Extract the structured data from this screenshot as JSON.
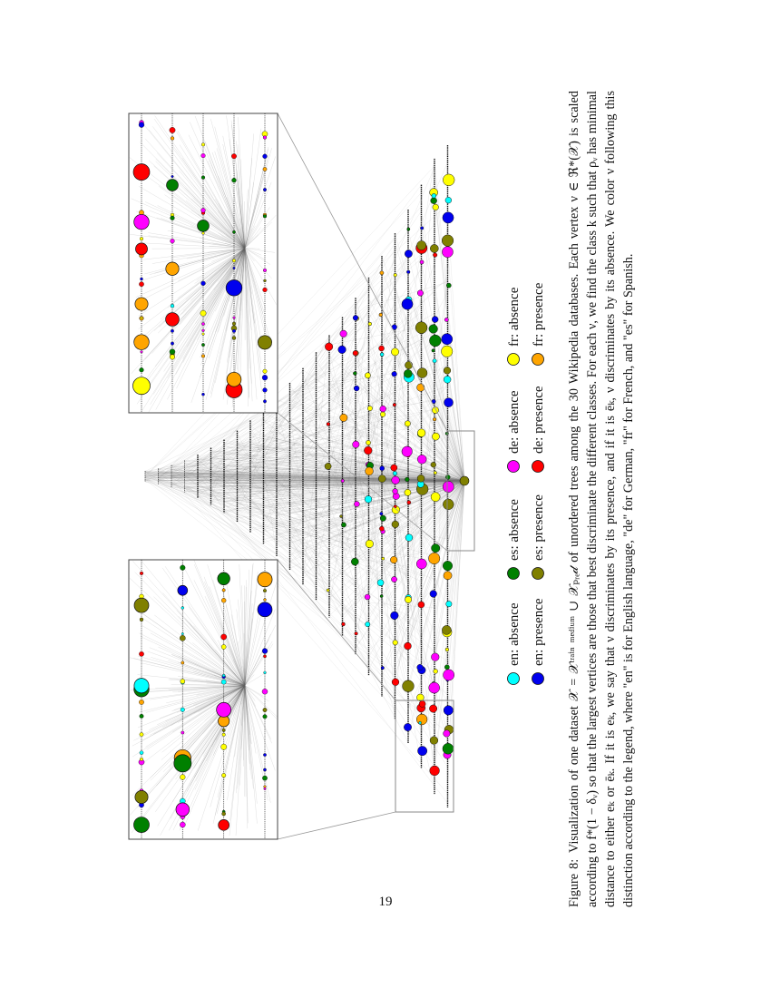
{
  "page_number": "19",
  "figure": {
    "caption_label": "Figure 8:",
    "caption_text": "Visualization of one dataset 𝒳 = 𝒳ᵗʳᵃⁱⁿ ᵐᵉᵈⁱᵘᵐ ∪ 𝒳ₚᵣₑ𝒹 of unordered trees among the 30 Wikipedia databases. Each vertex ν ∈ ℜ*(𝒳) is scaled according to f*(1 − δᵥ) so that the largest vertices are those that best discriminate the different classes. For each ν, we find the class k such that ρᵥ has minimal distance to either eₖ or ēₖ. If it is eₖ, we say that ν discriminates by its presence, and if it is ēₖ, ν discriminates by its absence. We color ν following this distinction according to the legend, where \"en\" is for English language, \"de\" for German, \"fr\" for French, and \"es\" for Spanish."
  },
  "legend": [
    {
      "label": "en: absence",
      "color": "#00ffff"
    },
    {
      "label": "en: presence",
      "color": "#0000ee"
    },
    {
      "label": "es: absence",
      "color": "#008000"
    },
    {
      "label": "es: presence",
      "color": "#808000"
    },
    {
      "label": "de: absence",
      "color": "#ff00ff"
    },
    {
      "label": "de: presence",
      "color": "#ff0000"
    },
    {
      "label": "fr: absence",
      "color": "#ffff00"
    },
    {
      "label": "fr: presence",
      "color": "#ffa500"
    }
  ]
}
